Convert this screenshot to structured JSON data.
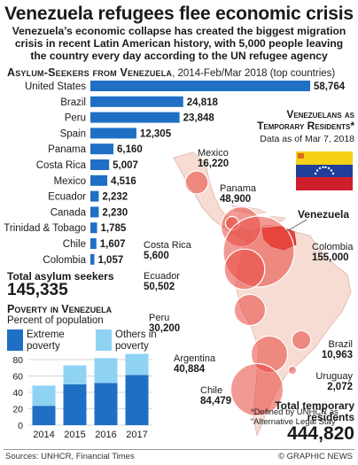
{
  "title": "Venezuela refugees flee economic crisis",
  "subtitle": "Venezuela’s economic collapse has created the biggest migration crisis in recent Latin American history, with 5,000 people leaving the country every day according to the UN refugee agency",
  "asylum_section": {
    "heading": "Asylum-Seekers from Venezuela",
    "period": ", 2014-Feb/Mar 2018 (top countries)"
  },
  "asylum_total": {
    "label": "Total asylum seekers",
    "value": "145,335"
  },
  "poverty_section": {
    "heading": "Poverty in Venezuela",
    "subheading": "Percent of population",
    "legend_extreme": "Extreme poverty",
    "legend_others": "Others in poverty"
  },
  "residents_section": {
    "heading": "Venezuelans as Temporary Residents*",
    "date": "Data as of Mar 7, 2018",
    "venezuela_label": "Venezuela",
    "total_label": "Total temporary residents",
    "total_value": "444,820",
    "footnote": "*Defined by UNHCR as “Alternative Legal Stay”"
  },
  "colors": {
    "bar_blue": "#1f6fc5",
    "light_blue": "#8fd3f4",
    "circle_red": "#e8463c",
    "land": "#f6dcd3",
    "sea": "#ffffff"
  },
  "chart_data": [
    {
      "type": "bar",
      "title": "Asylum-Seekers from Venezuela, 2014-Feb/Mar 2018 (top countries)",
      "categories": [
        "United States",
        "Brazil",
        "Peru",
        "Spain",
        "Panama",
        "Costa Rica",
        "Mexico",
        "Ecuador",
        "Canada",
        "Trinidad & Tobago",
        "Chile",
        "Colombia"
      ],
      "values": [
        58764,
        24818,
        23848,
        12305,
        6160,
        5007,
        4516,
        2232,
        2230,
        1785,
        1607,
        1057
      ],
      "labels": [
        "58,764",
        "24,818",
        "23,848",
        "12,305",
        "6,160",
        "5,007",
        "4,516",
        "2,232",
        "2,230",
        "1,785",
        "1,607",
        "1,057"
      ],
      "orientation": "horizontal"
    },
    {
      "type": "bar",
      "stacked": true,
      "title": "Poverty in Venezuela",
      "ylabel": "Percent of population",
      "categories": [
        "2014",
        "2015",
        "2016",
        "2017"
      ],
      "series": [
        {
          "name": "Extreme poverty",
          "values": [
            23.6,
            49.9,
            51.5,
            61.2
          ]
        },
        {
          "name": "Others in poverty",
          "values": [
            24.7,
            23.1,
            30.3,
            25.8
          ]
        }
      ],
      "ylim": [
        0,
        80
      ],
      "yticks": [
        "0",
        "20",
        "40",
        "60",
        "80"
      ],
      "grid": true
    },
    {
      "type": "bubble-map",
      "title": "Venezuelans as Temporary Residents*",
      "points": [
        {
          "country": "Mexico",
          "value": 16220,
          "label": "16,220"
        },
        {
          "country": "Panama",
          "value": 48900,
          "label": "48,900"
        },
        {
          "country": "Costa Rica",
          "value": 5600,
          "label": "5,600"
        },
        {
          "country": "Colombia",
          "value": 155000,
          "label": "155,000"
        },
        {
          "country": "Ecuador",
          "value": 50502,
          "label": "50,502"
        },
        {
          "country": "Peru",
          "value": 30200,
          "label": "30,200"
        },
        {
          "country": "Brazil",
          "value": 10963,
          "label": "10,963"
        },
        {
          "country": "Argentina",
          "value": 40884,
          "label": "40,884"
        },
        {
          "country": "Uruguay",
          "value": 2072,
          "label": "2,072"
        },
        {
          "country": "Chile",
          "value": 84479,
          "label": "84,479"
        }
      ]
    }
  ],
  "footer": {
    "source": "Sources: UNHCR, Financial Times",
    "copyright": "© GRAPHIC NEWS"
  }
}
